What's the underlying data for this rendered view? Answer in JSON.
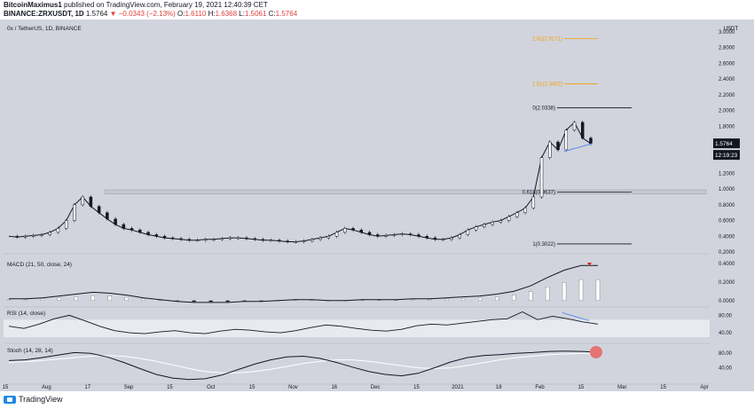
{
  "header": {
    "publisher": "BitcoinMaximus1",
    "published_text": " published on TradingView.com, February 19, 2021 12:40:39 CET",
    "symbol_line": "BINANCE:ZRXUSDT, 1D",
    "ohlc_last": "1.5764",
    "change": "▼ −0.0343 (−2.13%)",
    "o_label": "O:",
    "o_val": "1.6110",
    "h_label": "H:",
    "h_val": "1.6368",
    "l_label": "L:",
    "l_val": "1.5061",
    "c_label": "C:",
    "c_val": "1.5764"
  },
  "colors": {
    "up": "#ffffff",
    "down": "#131722",
    "fib": "#131722",
    "fib_ext": "#f59e0b",
    "trend": "#5b8def",
    "rsi_band": "#e8eaf0",
    "stoch_dot": "#e57373",
    "macd_arrow": "#d32f2f"
  },
  "chart_data": {
    "type": "line",
    "title": "0x / TetherUS, 1D, BINANCE",
    "price_unit": "USDT",
    "y_ticks": [
      "3.0000",
      "2.8000",
      "2.6000",
      "2.4000",
      "2.2000",
      "2.0000",
      "1.8000",
      "1.6000",
      "1.4000",
      "1.2000",
      "1.0000",
      "0.8000",
      "0.6000",
      "0.4000",
      "0.2000"
    ],
    "ylim": [
      0.2,
      3.0
    ],
    "x_ticks": [
      "15",
      "Aug",
      "17",
      "Sep",
      "15",
      "Oct",
      "15",
      "Nov",
      "16",
      "Dec",
      "15",
      "2021",
      "18",
      "Feb",
      "15",
      "Mar",
      "15",
      "Apr"
    ],
    "close_series": [
      0.4,
      0.39,
      0.4,
      0.41,
      0.42,
      0.45,
      0.5,
      0.6,
      0.8,
      0.9,
      0.78,
      0.7,
      0.62,
      0.55,
      0.5,
      0.48,
      0.45,
      0.42,
      0.4,
      0.38,
      0.37,
      0.36,
      0.35,
      0.35,
      0.36,
      0.36,
      0.37,
      0.38,
      0.38,
      0.37,
      0.36,
      0.35,
      0.35,
      0.34,
      0.33,
      0.33,
      0.34,
      0.36,
      0.38,
      0.4,
      0.45,
      0.5,
      0.48,
      0.45,
      0.42,
      0.4,
      0.41,
      0.42,
      0.43,
      0.42,
      0.4,
      0.38,
      0.36,
      0.36,
      0.38,
      0.42,
      0.48,
      0.52,
      0.55,
      0.58,
      0.6,
      0.65,
      0.7,
      0.76,
      0.9,
      1.4,
      1.6,
      1.5,
      1.75,
      1.85,
      1.65,
      1.58
    ],
    "fib_levels": [
      {
        "label": "0(2.0338)",
        "value": 2.0338
      },
      {
        "label": "0.618(0.9637)",
        "value": 0.9637
      },
      {
        "label": "1(0.3022)",
        "value": 0.3022
      }
    ],
    "fib_extensions": [
      {
        "label": "1.61(2.3402)",
        "value": 2.3402
      },
      {
        "label": "2.61(2.9171)",
        "value": 2.9171
      }
    ],
    "current_price": "1.5764",
    "countdown": "12:19:23",
    "resistance_zone": [
      0.94,
      0.99
    ],
    "macd": {
      "label": "MACD (21, 50, close, 24)",
      "y_ticks": [
        "0.4000",
        "0.2000",
        "0.0000"
      ],
      "ylim": [
        -0.05,
        0.45
      ],
      "line": [
        0.02,
        0.02,
        0.03,
        0.05,
        0.07,
        0.09,
        0.08,
        0.06,
        0.03,
        0.01,
        -0.01,
        -0.02,
        -0.02,
        -0.02,
        -0.01,
        -0.01,
        0.0,
        0.01,
        0.01,
        0.0,
        0.0,
        0.01,
        0.01,
        0.01,
        0.02,
        0.02,
        0.03,
        0.04,
        0.05,
        0.07,
        0.1,
        0.16,
        0.25,
        0.33,
        0.38,
        0.38
      ]
    },
    "rsi": {
      "label": "RSI (14, close)",
      "y_ticks": [
        "80.00",
        "40.00"
      ],
      "ylim": [
        20,
        95
      ],
      "band": [
        30,
        70
      ],
      "values": [
        55,
        50,
        60,
        72,
        80,
        68,
        55,
        45,
        40,
        38,
        42,
        45,
        40,
        38,
        44,
        48,
        46,
        42,
        40,
        45,
        52,
        58,
        55,
        50,
        46,
        44,
        48,
        56,
        60,
        58,
        62,
        66,
        70,
        72,
        88,
        70,
        78,
        72,
        65,
        60
      ]
    },
    "stoch": {
      "label": "Stoch (14, 28, 14)",
      "y_ticks": [
        "80.00",
        "40.00"
      ],
      "ylim": [
        0,
        100
      ],
      "k": [
        60,
        62,
        68,
        75,
        82,
        80,
        70,
        55,
        38,
        22,
        12,
        8,
        10,
        20,
        35,
        50,
        62,
        70,
        72,
        66,
        55,
        42,
        30,
        22,
        18,
        25,
        40,
        56,
        68,
        74,
        76,
        80,
        82,
        85,
        86,
        85,
        83
      ],
      "d": [
        55,
        57,
        60,
        64,
        68,
        72,
        74,
        72,
        66,
        58,
        48,
        38,
        30,
        26,
        26,
        30,
        36,
        44,
        52,
        58,
        62,
        62,
        58,
        52,
        46,
        40,
        38,
        40,
        46,
        54,
        62,
        68,
        72,
        76,
        78,
        80,
        81
      ]
    }
  },
  "footer": {
    "brand": "TradingView"
  }
}
